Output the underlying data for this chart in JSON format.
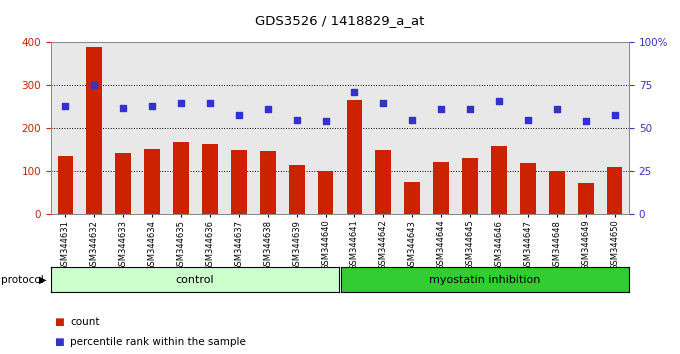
{
  "title": "GDS3526 / 1418829_a_at",
  "samples": [
    "GSM344631",
    "GSM344632",
    "GSM344633",
    "GSM344634",
    "GSM344635",
    "GSM344636",
    "GSM344637",
    "GSM344638",
    "GSM344639",
    "GSM344640",
    "GSM344641",
    "GSM344642",
    "GSM344643",
    "GSM344644",
    "GSM344645",
    "GSM344646",
    "GSM344647",
    "GSM344648",
    "GSM344649",
    "GSM344650"
  ],
  "counts": [
    135,
    390,
    143,
    152,
    168,
    163,
    150,
    148,
    115,
    100,
    265,
    150,
    75,
    122,
    132,
    158,
    120,
    100,
    72,
    110
  ],
  "percentiles": [
    63,
    75,
    62,
    63,
    65,
    65,
    58,
    61,
    55,
    54,
    71,
    65,
    55,
    61,
    61,
    66,
    55,
    61,
    54,
    58
  ],
  "control_count": 10,
  "bar_color": "#cc2200",
  "dot_color": "#3333cc",
  "control_bg": "#ccffcc",
  "inhibition_bg": "#33cc33",
  "plot_bg": "#e8e8e8",
  "ylim_left": [
    0,
    400
  ],
  "ylim_right": [
    0,
    100
  ],
  "yticks_left": [
    0,
    100,
    200,
    300,
    400
  ],
  "yticks_right": [
    0,
    25,
    50,
    75,
    100
  ],
  "yticklabels_right": [
    "0",
    "25",
    "50",
    "75",
    "100%"
  ],
  "grid_values": [
    100,
    200,
    300
  ],
  "protocol_label": "protocol",
  "control_label": "control",
  "inhibition_label": "myostatin inhibition",
  "legend_count": "count",
  "legend_pct": "percentile rank within the sample"
}
